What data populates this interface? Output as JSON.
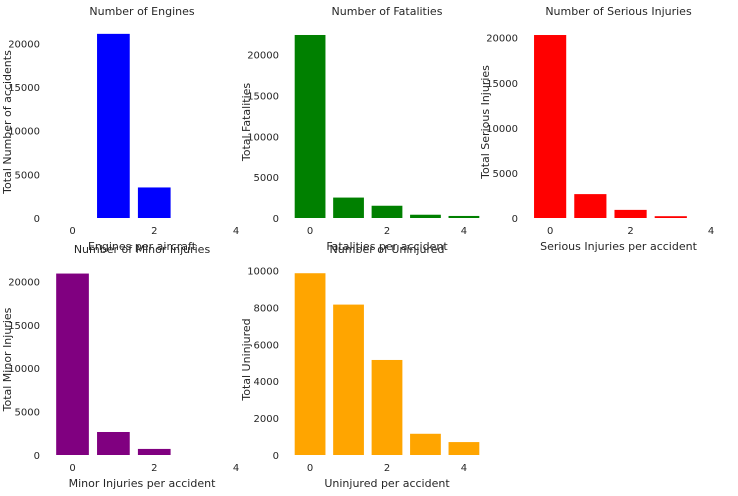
{
  "chart_data": [
    {
      "type": "bar",
      "title": "Number of Engines",
      "xlabel": "Engines per aircraft",
      "ylabel": "Total Number of accidents",
      "x": [
        1,
        2
      ],
      "values": [
        21100,
        3500
      ],
      "color": "#0000ff",
      "xlim": [
        -0.6,
        4.0
      ],
      "ylim": [
        0,
        22000
      ],
      "xticks": [
        "0",
        "2",
        "4"
      ],
      "yticks": [
        "0",
        "5000",
        "10000",
        "15000",
        "20000"
      ],
      "grid": false
    },
    {
      "type": "bar",
      "title": "Number of Fatalities",
      "xlabel": "Fatalities per accident",
      "ylabel": "Total Fatalities",
      "x": [
        0,
        1,
        2,
        3,
        4
      ],
      "values": [
        22400,
        2500,
        1500,
        400,
        250
      ],
      "color": "#008000",
      "xlim": [
        -0.6,
        4.6
      ],
      "ylim": [
        0,
        23500
      ],
      "xticks": [
        "0",
        "2",
        "4"
      ],
      "yticks": [
        "0",
        "5000",
        "10000",
        "15000",
        "20000"
      ],
      "grid": false
    },
    {
      "type": "bar",
      "title": "Number of Serious Injuries",
      "xlabel": "Serious Injuries per accident",
      "ylabel": "Total Serious Injuries",
      "x": [
        0,
        1,
        2,
        3
      ],
      "values": [
        20300,
        2650,
        900,
        200
      ],
      "color": "#ff0000",
      "xlim": [
        -0.6,
        4.0
      ],
      "ylim": [
        0,
        21300
      ],
      "xticks": [
        "0",
        "2",
        "4"
      ],
      "yticks": [
        "0",
        "5000",
        "10000",
        "15000",
        "20000"
      ],
      "grid": false
    },
    {
      "type": "bar",
      "title": "Number of Minor Injuries",
      "xlabel": "Minor Injuries per accident",
      "ylabel": "Total Minor Injuries",
      "x": [
        0,
        1,
        2
      ],
      "values": [
        20900,
        2650,
        700
      ],
      "color": "#800080",
      "xlim": [
        -0.6,
        4.0
      ],
      "ylim": [
        0,
        22000
      ],
      "xticks": [
        "0",
        "2",
        "4"
      ],
      "yticks": [
        "0",
        "5000",
        "10000",
        "15000",
        "20000"
      ],
      "grid": false
    },
    {
      "type": "bar",
      "title": "Number of Uninjured",
      "xlabel": "Uninjured per accident",
      "ylabel": "Total Uninjured",
      "x": [
        0,
        1,
        2,
        3,
        4
      ],
      "values": [
        9850,
        8150,
        5150,
        1150,
        700
      ],
      "color": "#ffa500",
      "xlim": [
        -0.6,
        4.6
      ],
      "ylim": [
        0,
        10350
      ],
      "xticks": [
        "0",
        "2",
        "4"
      ],
      "yticks": [
        "0",
        "2000",
        "4000",
        "6000",
        "8000",
        "10000"
      ],
      "grid": false
    }
  ]
}
